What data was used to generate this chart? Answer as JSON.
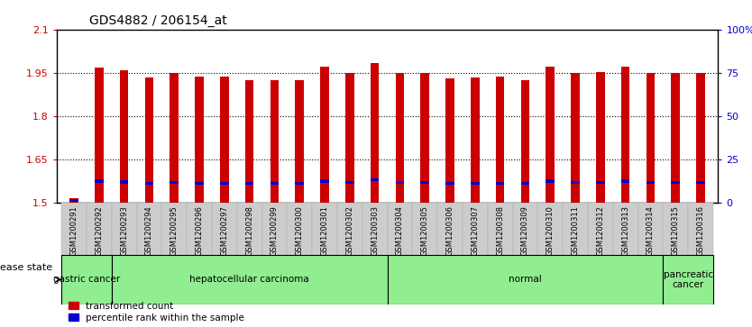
{
  "title": "GDS4882 / 206154_at",
  "samples": [
    "GSM1200291",
    "GSM1200292",
    "GSM1200293",
    "GSM1200294",
    "GSM1200295",
    "GSM1200296",
    "GSM1200297",
    "GSM1200298",
    "GSM1200299",
    "GSM1200300",
    "GSM1200301",
    "GSM1200302",
    "GSM1200303",
    "GSM1200304",
    "GSM1200305",
    "GSM1200306",
    "GSM1200307",
    "GSM1200308",
    "GSM1200309",
    "GSM1200310",
    "GSM1200311",
    "GSM1200312",
    "GSM1200313",
    "GSM1200314",
    "GSM1200315",
    "GSM1200316"
  ],
  "red_values": [
    1.515,
    1.968,
    1.96,
    1.935,
    1.948,
    1.936,
    1.937,
    1.925,
    1.925,
    1.925,
    1.97,
    1.948,
    1.985,
    1.948,
    1.948,
    1.93,
    1.933,
    1.936,
    1.925,
    1.97,
    1.948,
    1.953,
    1.97,
    1.948,
    1.948,
    1.948
  ],
  "blue_values": [
    1.508,
    1.575,
    1.572,
    1.568,
    1.57,
    1.568,
    1.568,
    1.567,
    1.567,
    1.567,
    1.575,
    1.57,
    1.58,
    1.57,
    1.57,
    1.567,
    1.568,
    1.568,
    1.567,
    1.575,
    1.57,
    1.571,
    1.575,
    1.57,
    1.57,
    1.57
  ],
  "group_boundaries": [
    {
      "label": "gastric cancer",
      "start": 0,
      "end": 2,
      "color": "#90EE90"
    },
    {
      "label": "hepatocellular carcinoma",
      "start": 2,
      "end": 13,
      "color": "#90EE90"
    },
    {
      "label": "normal",
      "start": 13,
      "end": 24,
      "color": "#90EE90"
    },
    {
      "label": "pancreatic\ncancer",
      "start": 24,
      "end": 26,
      "color": "#90EE90"
    }
  ],
  "ylim_left": [
    1.5,
    2.1
  ],
  "yticks_left": [
    1.5,
    1.65,
    1.8,
    1.95,
    2.1
  ],
  "ytick_labels_left": [
    "1.5",
    "1.65",
    "1.8",
    "1.95",
    "2.1"
  ],
  "yticks_right": [
    0,
    25,
    50,
    75,
    100
  ],
  "ytick_labels_right": [
    "0",
    "25",
    "50",
    "75",
    "100%"
  ],
  "bar_color": "#CC0000",
  "blue_color": "#0000CC",
  "bar_width": 0.35,
  "background_color": "#ffffff",
  "grid_color": "#000000",
  "ylabel_left_color": "#CC0000",
  "ylabel_right_color": "#0000CC",
  "legend_red_label": "transformed count",
  "legend_blue_label": "percentile rank within the sample",
  "disease_state_label": "disease state",
  "xtick_bg_color": "#cccccc",
  "blue_bar_height": 0.01
}
